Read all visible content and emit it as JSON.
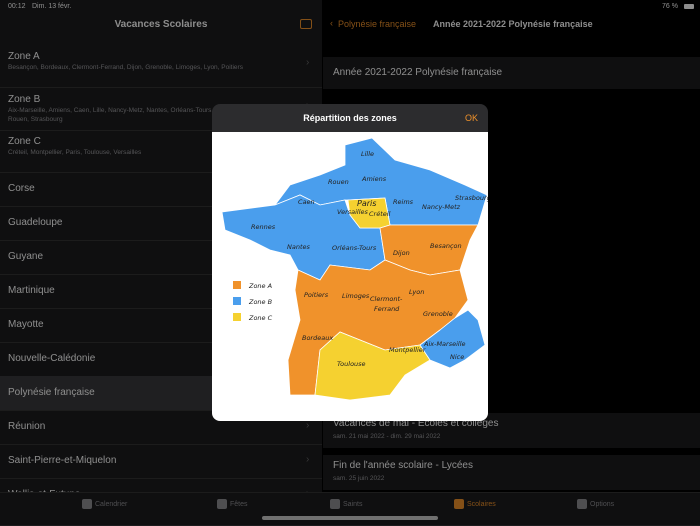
{
  "status": {
    "time": "00:12",
    "date": "Dim. 13 févr.",
    "battery": "76 %"
  },
  "sidebar": {
    "title": "Vacances Scolaires",
    "zones": [
      {
        "name": "Zone A",
        "subtitle": "Besançon, Bordeaux, Clermont-Ferrand, Dijon, Grenoble, Limoges, Lyon, Poitiers"
      },
      {
        "name": "Zone B",
        "subtitle": "Aix-Marseille, Amiens, Caen, Lille, Nancy-Metz, Nantes, Orléans-Tours, Reims, Rennes,",
        "subtitle2": "Rouen, Strasbourg"
      },
      {
        "name": "Zone C",
        "subtitle": "Créteil, Montpellier, Paris, Toulouse, Versailles"
      }
    ],
    "items": [
      "Corse",
      "Guadeloupe",
      "Guyane",
      "Martinique",
      "Mayotte",
      "Nouvelle-Calédonie",
      "Polynésie française",
      "Réunion",
      "Saint-Pierre-et-Miquelon",
      "Wallis-et-Futuna"
    ]
  },
  "detail": {
    "back": "Polynésie française",
    "title": "Année 2021-2022 Polynésie française",
    "rows": [
      {
        "title": "Année 2021-2022 Polynésie française"
      },
      {
        "title": "Vacances de mai - Écoles et collèges",
        "date": "sam. 21 mai 2022 - dim. 29 mai 2022"
      },
      {
        "title": "Fin de l'année scolaire  - Lycées",
        "date": "sam. 25 juin 2022"
      }
    ]
  },
  "modal": {
    "title": "Répartition des zones",
    "ok": "OK",
    "legend": [
      "Zone A",
      "Zone B",
      "Zone C"
    ],
    "labels": [
      "Lille",
      "Amiens",
      "Rouen",
      "Caen",
      "Reims",
      "Strasbourg",
      "Nancy-Metz",
      "Paris",
      "Versailles",
      "Créteil",
      "Rennes",
      "Nantes",
      "Orléans-Tours",
      "Dijon",
      "Besançon",
      "Poitiers",
      "Limoges",
      "Clermont-",
      "Ferrand",
      "Lyon",
      "Grenoble",
      "Bordeaux",
      "Aix-Marseille",
      "Nice",
      "Toulouse",
      "Montpellier"
    ]
  },
  "tabs": [
    "Calendrier",
    "Fêtes",
    "Saints",
    "Scolaires",
    "Options"
  ]
}
